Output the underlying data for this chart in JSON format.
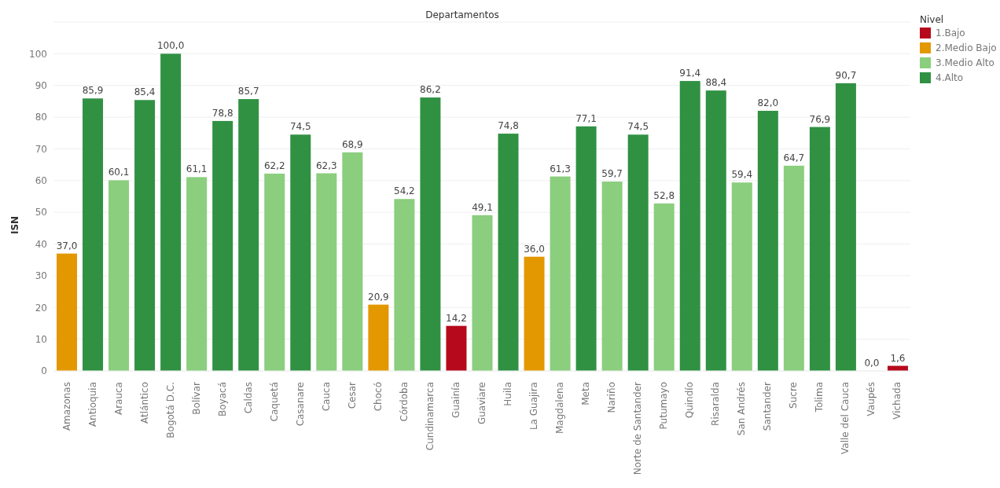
{
  "chart_data": {
    "type": "bar",
    "title": "Departamentos",
    "ylabel": "ISN",
    "legend_title": "Nivel",
    "legend": "top right",
    "grid": "y",
    "stacked": true,
    "categories": [
      "Amazonas",
      "Antioquia",
      "Arauca",
      "Atlántico",
      "Bogotá D.C.",
      "Bolívar",
      "Boyacá",
      "Caldas",
      "Caquetá",
      "Casanare",
      "Cauca",
      "Cesar",
      "Chocó",
      "Córdoba",
      "Cundinamarca",
      "Guainía",
      "Guaviare",
      "Huila",
      "La Guajira",
      "Magdalena",
      "Meta",
      "Nariño",
      "Norte de Santander",
      "Putumayo",
      "Quindío",
      "Risaralda",
      "San Andrés",
      "Santander",
      "Sucre",
      "Tolima",
      "Valle del Cauca",
      "Vaupés",
      "Vichada"
    ],
    "ylim": [
      0,
      110
    ],
    "yticks": [
      0,
      10,
      20,
      30,
      40,
      50,
      60,
      70,
      80,
      90,
      100
    ],
    "series": [
      {
        "name": "1.Bajo",
        "color": "#b60a1c",
        "values": [
          null,
          null,
          null,
          null,
          null,
          null,
          null,
          null,
          null,
          null,
          null,
          null,
          null,
          null,
          null,
          14.2,
          null,
          null,
          null,
          null,
          null,
          null,
          null,
          null,
          null,
          null,
          null,
          null,
          null,
          null,
          null,
          0.0,
          1.6
        ],
        "value_labels": [
          null,
          null,
          null,
          null,
          null,
          null,
          null,
          null,
          null,
          null,
          null,
          null,
          null,
          null,
          null,
          "14,2",
          null,
          null,
          null,
          null,
          null,
          null,
          null,
          null,
          null,
          null,
          null,
          null,
          null,
          null,
          null,
          "0,0",
          "1,6"
        ]
      },
      {
        "name": "2.Medio Bajo",
        "color": "#e39802",
        "values": [
          37.0,
          null,
          null,
          null,
          null,
          null,
          null,
          null,
          null,
          null,
          null,
          null,
          20.9,
          null,
          null,
          null,
          null,
          null,
          36.0,
          null,
          null,
          null,
          null,
          null,
          null,
          null,
          null,
          null,
          null,
          null,
          null,
          null,
          null
        ],
        "value_labels": [
          "37,0",
          null,
          null,
          null,
          null,
          null,
          null,
          null,
          null,
          null,
          null,
          null,
          "20,9",
          null,
          null,
          null,
          null,
          null,
          "36,0",
          null,
          null,
          null,
          null,
          null,
          null,
          null,
          null,
          null,
          null,
          null,
          null,
          null,
          null
        ]
      },
      {
        "name": "3.Medio Alto",
        "color": "#8ace7e",
        "values": [
          null,
          null,
          60.1,
          null,
          null,
          61.1,
          null,
          null,
          62.2,
          null,
          62.3,
          68.9,
          null,
          54.2,
          null,
          null,
          49.1,
          null,
          null,
          61.3,
          null,
          59.7,
          null,
          52.8,
          null,
          null,
          59.4,
          null,
          64.7,
          null,
          null,
          null,
          null
        ],
        "value_labels": [
          null,
          null,
          "60,1",
          null,
          null,
          "61,1",
          null,
          null,
          "62,2",
          null,
          "62,3",
          "68,9",
          null,
          "54,2",
          null,
          null,
          "49,1",
          null,
          null,
          "61,3",
          null,
          "59,7",
          null,
          "52,8",
          null,
          null,
          "59,4",
          null,
          "64,7",
          null,
          null,
          null,
          null
        ]
      },
      {
        "name": "4.Alto",
        "color": "#309143",
        "values": [
          null,
          85.9,
          null,
          85.4,
          100.0,
          null,
          78.8,
          85.7,
          null,
          74.5,
          null,
          null,
          null,
          null,
          86.2,
          null,
          null,
          74.8,
          null,
          null,
          77.1,
          null,
          74.5,
          null,
          91.4,
          88.4,
          null,
          82.0,
          null,
          76.9,
          90.7,
          null,
          null
        ],
        "value_labels": [
          null,
          "85,9",
          null,
          "85,4",
          "100,0",
          null,
          "78,8",
          "85,7",
          null,
          "74,5",
          null,
          null,
          null,
          null,
          "86,2",
          null,
          null,
          "74,8",
          null,
          null,
          "77,1",
          null,
          "74,5",
          null,
          "91,4",
          "88,4",
          null,
          "82,0",
          null,
          "76,9",
          "90,7",
          null,
          null
        ]
      }
    ]
  }
}
